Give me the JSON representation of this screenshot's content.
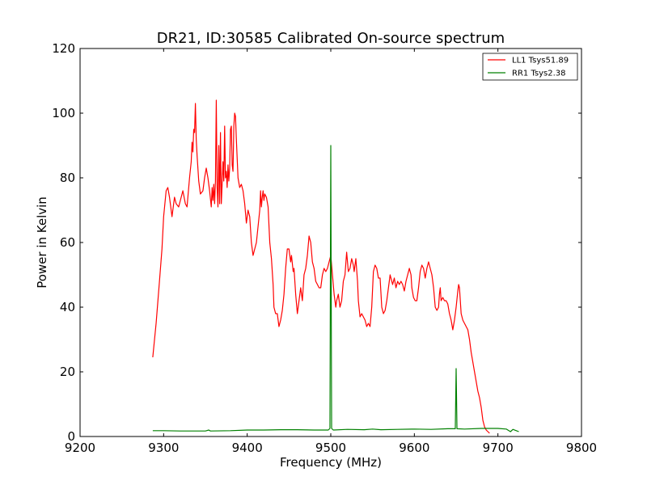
{
  "chart_data": {
    "type": "line",
    "title": "DR21, ID:30585 Calibrated On-source spectrum",
    "xlabel": "Frequency (MHz)",
    "ylabel": "Power in Kelvin",
    "xlim": [
      9200,
      9800
    ],
    "ylim": [
      0,
      120
    ],
    "xticks": [
      9200,
      9300,
      9400,
      9500,
      9600,
      9700,
      9800
    ],
    "yticks": [
      0,
      20,
      40,
      60,
      80,
      100,
      120
    ],
    "grid": false,
    "legend_position": "top-right",
    "series": [
      {
        "name": "LL1 Tsys51.89",
        "color": "#ff0000",
        "points": [
          [
            9287,
            24.5
          ],
          [
            9291,
            35
          ],
          [
            9295,
            48
          ],
          [
            9298,
            58
          ],
          [
            9300,
            68
          ],
          [
            9303,
            76
          ],
          [
            9305,
            77
          ],
          [
            9307,
            74
          ],
          [
            9310,
            68
          ],
          [
            9313,
            74
          ],
          [
            9315,
            72
          ],
          [
            9318,
            71
          ],
          [
            9320,
            73
          ],
          [
            9323,
            76
          ],
          [
            9326,
            72
          ],
          [
            9328,
            71
          ],
          [
            9331,
            80
          ],
          [
            9333,
            85
          ],
          [
            9334,
            91
          ],
          [
            9335,
            88
          ],
          [
            9336,
            95
          ],
          [
            9337,
            94
          ],
          [
            9338,
            103
          ],
          [
            9339,
            92
          ],
          [
            9340,
            87
          ],
          [
            9342,
            79
          ],
          [
            9344,
            75
          ],
          [
            9347,
            76
          ],
          [
            9349,
            80
          ],
          [
            9351,
            83
          ],
          [
            9353,
            80
          ],
          [
            9355,
            76
          ],
          [
            9357,
            71
          ],
          [
            9358,
            77
          ],
          [
            9359,
            73
          ],
          [
            9360,
            78
          ],
          [
            9361,
            72
          ],
          [
            9362,
            79
          ],
          [
            9363,
            104
          ],
          [
            9364,
            77
          ],
          [
            9365,
            71
          ],
          [
            9366,
            90
          ],
          [
            9367,
            72
          ],
          [
            9368,
            94
          ],
          [
            9369,
            72
          ],
          [
            9370,
            78
          ],
          [
            9371,
            85
          ],
          [
            9372,
            79
          ],
          [
            9373,
            96
          ],
          [
            9374,
            80
          ],
          [
            9375,
            82
          ],
          [
            9376,
            77
          ],
          [
            9377,
            84
          ],
          [
            9378,
            79
          ],
          [
            9379,
            83
          ],
          [
            9380,
            95
          ],
          [
            9381,
            96
          ],
          [
            9382,
            84
          ],
          [
            9383,
            82
          ],
          [
            9384,
            96
          ],
          [
            9385,
            100
          ],
          [
            9386,
            99
          ],
          [
            9387,
            92
          ],
          [
            9389,
            80
          ],
          [
            9391,
            77
          ],
          [
            9393,
            78
          ],
          [
            9395,
            76
          ],
          [
            9397,
            72
          ],
          [
            9399,
            66
          ],
          [
            9401,
            70
          ],
          [
            9403,
            68
          ],
          [
            9405,
            60
          ],
          [
            9407,
            56
          ],
          [
            9409,
            58
          ],
          [
            9411,
            60
          ],
          [
            9413,
            65
          ],
          [
            9415,
            70
          ],
          [
            9416,
            76
          ],
          [
            9417,
            71
          ],
          [
            9418,
            74
          ],
          [
            9419,
            76
          ],
          [
            9420,
            73
          ],
          [
            9421,
            75
          ],
          [
            9423,
            74
          ],
          [
            9425,
            71
          ],
          [
            9427,
            60
          ],
          [
            9429,
            55
          ],
          [
            9431,
            47
          ],
          [
            9432,
            40
          ],
          [
            9434,
            38
          ],
          [
            9436,
            38
          ],
          [
            9438,
            34
          ],
          [
            9440,
            36
          ],
          [
            9442,
            39
          ],
          [
            9444,
            44
          ],
          [
            9446,
            52
          ],
          [
            9448,
            58
          ],
          [
            9450,
            58
          ],
          [
            9452,
            54
          ],
          [
            9453,
            56
          ],
          [
            9455,
            51
          ],
          [
            9456,
            52
          ],
          [
            9458,
            44
          ],
          [
            9460,
            38
          ],
          [
            9462,
            42
          ],
          [
            9464,
            46
          ],
          [
            9466,
            42
          ],
          [
            9468,
            50
          ],
          [
            9470,
            52
          ],
          [
            9472,
            56
          ],
          [
            9474,
            62
          ],
          [
            9476,
            60
          ],
          [
            9478,
            54
          ],
          [
            9480,
            52
          ],
          [
            9482,
            48
          ],
          [
            9484,
            47
          ],
          [
            9486,
            46
          ],
          [
            9488,
            46
          ],
          [
            9490,
            50
          ],
          [
            9492,
            52
          ],
          [
            9494,
            51
          ],
          [
            9496,
            52
          ],
          [
            9498,
            54
          ],
          [
            9500,
            56
          ],
          [
            9502,
            50
          ],
          [
            9504,
            44
          ],
          [
            9506,
            40
          ],
          [
            9507,
            42
          ],
          [
            9509,
            44
          ],
          [
            9511,
            40
          ],
          [
            9513,
            42
          ],
          [
            9515,
            48
          ],
          [
            9517,
            50
          ],
          [
            9519,
            57
          ],
          [
            9521,
            51
          ],
          [
            9523,
            52
          ],
          [
            9525,
            55
          ],
          [
            9527,
            53
          ],
          [
            9528,
            51
          ],
          [
            9530,
            55
          ],
          [
            9532,
            48
          ],
          [
            9533,
            42
          ],
          [
            9535,
            37
          ],
          [
            9537,
            38
          ],
          [
            9539,
            37
          ],
          [
            9541,
            36
          ],
          [
            9543,
            34
          ],
          [
            9545,
            35
          ],
          [
            9547,
            34
          ],
          [
            9549,
            40
          ],
          [
            9551,
            51
          ],
          [
            9553,
            53
          ],
          [
            9555,
            52
          ],
          [
            9557,
            49
          ],
          [
            9559,
            49
          ],
          [
            9561,
            40
          ],
          [
            9563,
            38
          ],
          [
            9565,
            39
          ],
          [
            9567,
            42
          ],
          [
            9569,
            46
          ],
          [
            9571,
            50
          ],
          [
            9573,
            48
          ],
          [
            9574,
            47
          ],
          [
            9576,
            49
          ],
          [
            9578,
            46
          ],
          [
            9580,
            48
          ],
          [
            9582,
            47
          ],
          [
            9584,
            48
          ],
          [
            9586,
            47
          ],
          [
            9588,
            45
          ],
          [
            9590,
            48
          ],
          [
            9592,
            50
          ],
          [
            9594,
            52
          ],
          [
            9596,
            50
          ],
          [
            9597,
            46
          ],
          [
            9599,
            43
          ],
          [
            9601,
            42
          ],
          [
            9603,
            42
          ],
          [
            9605,
            46
          ],
          [
            9607,
            51
          ],
          [
            9609,
            53
          ],
          [
            9611,
            52
          ],
          [
            9613,
            49
          ],
          [
            9615,
            52
          ],
          [
            9617,
            54
          ],
          [
            9619,
            52
          ],
          [
            9621,
            50
          ],
          [
            9623,
            46
          ],
          [
            9625,
            40
          ],
          [
            9627,
            39
          ],
          [
            9629,
            40
          ],
          [
            9630,
            44
          ],
          [
            9631,
            46
          ],
          [
            9632,
            42
          ],
          [
            9634,
            43
          ],
          [
            9636,
            42
          ],
          [
            9638,
            42
          ],
          [
            9640,
            41
          ],
          [
            9642,
            38
          ],
          [
            9644,
            36
          ],
          [
            9646,
            33
          ],
          [
            9648,
            36
          ],
          [
            9650,
            40
          ],
          [
            9652,
            45
          ],
          [
            9653,
            47
          ],
          [
            9654,
            46
          ],
          [
            9656,
            38
          ],
          [
            9658,
            36
          ],
          [
            9660,
            35
          ],
          [
            9662,
            34
          ],
          [
            9664,
            33
          ],
          [
            9666,
            30
          ],
          [
            9668,
            26
          ],
          [
            9670,
            23
          ],
          [
            9672,
            20
          ],
          [
            9674,
            17
          ],
          [
            9676,
            14
          ],
          [
            9678,
            12
          ],
          [
            9680,
            9
          ],
          [
            9682,
            5
          ],
          [
            9684,
            3
          ],
          [
            9686,
            2
          ],
          [
            9688,
            1.5
          ],
          [
            9690,
            1
          ]
        ]
      },
      {
        "name": "RR1 Tsys2.38",
        "color": "#008000",
        "points": [
          [
            9287,
            1.8
          ],
          [
            9300,
            1.8
          ],
          [
            9320,
            1.7
          ],
          [
            9340,
            1.7
          ],
          [
            9350,
            1.7
          ],
          [
            9354,
            2.0
          ],
          [
            9356,
            1.7
          ],
          [
            9380,
            1.8
          ],
          [
            9400,
            2.0
          ],
          [
            9420,
            2.0
          ],
          [
            9440,
            2.1
          ],
          [
            9460,
            2.1
          ],
          [
            9480,
            2.0
          ],
          [
            9497,
            2.0
          ],
          [
            9499,
            2.5
          ],
          [
            9500,
            90
          ],
          [
            9501,
            2.5
          ],
          [
            9503,
            2.0
          ],
          [
            9520,
            2.2
          ],
          [
            9540,
            2.1
          ],
          [
            9550,
            2.3
          ],
          [
            9560,
            2.1
          ],
          [
            9580,
            2.2
          ],
          [
            9600,
            2.3
          ],
          [
            9620,
            2.2
          ],
          [
            9640,
            2.4
          ],
          [
            9649,
            2.4
          ],
          [
            9650,
            21
          ],
          [
            9651,
            2.4
          ],
          [
            9660,
            2.3
          ],
          [
            9680,
            2.5
          ],
          [
            9700,
            2.5
          ],
          [
            9710,
            2.3
          ],
          [
            9715,
            1.5
          ],
          [
            9718,
            2.2
          ],
          [
            9722,
            1.8
          ],
          [
            9725,
            1.5
          ]
        ]
      }
    ]
  }
}
